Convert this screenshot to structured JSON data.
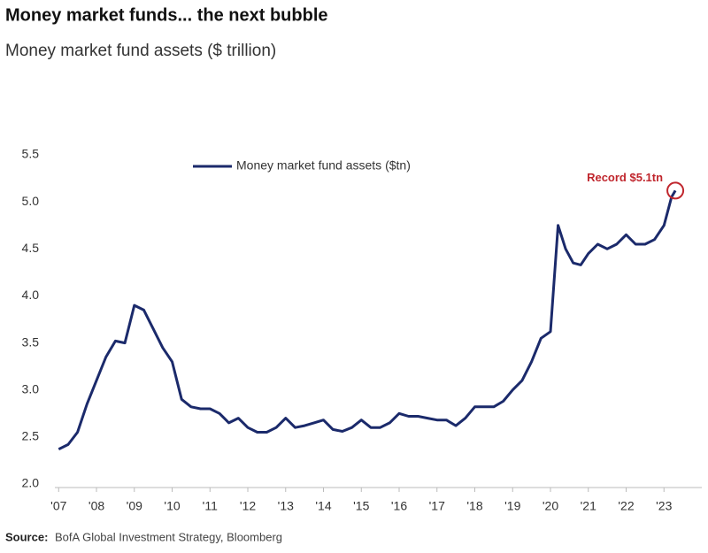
{
  "chart_data": {
    "type": "line",
    "title": "Money market funds... the next bubble",
    "subtitle": "Money market fund assets ($ trillion)",
    "source_label": "Source:",
    "source": "BofA Global Investment Strategy, Bloomberg",
    "annotation": "Record $5.1tn",
    "legend": "top-left",
    "grid": false,
    "xlim": [
      2006.9,
      2024
    ],
    "ylim": [
      2.0,
      5.5
    ],
    "yticks": [
      {
        "value": 2.0,
        "label": "2.0"
      },
      2.5,
      {
        "value": 3.0,
        "label": "3.0"
      },
      3.5,
      {
        "value": 4.0,
        "label": "4.0"
      },
      4.5,
      {
        "value": 5.0,
        "label": "5.0"
      },
      5.5
    ],
    "xticks": [
      {
        "value": 2007,
        "label": "'07"
      },
      {
        "value": 2008,
        "label": "'08"
      },
      {
        "value": 2009,
        "label": "'09"
      },
      {
        "value": 2010,
        "label": "'10"
      },
      {
        "value": 2011,
        "label": "'11"
      },
      {
        "value": 2012,
        "label": "'12"
      },
      {
        "value": 2013,
        "label": "'13"
      },
      {
        "value": 2014,
        "label": "'14"
      },
      {
        "value": 2015,
        "label": "'15"
      },
      {
        "value": 2016,
        "label": "'16"
      },
      {
        "value": 2017,
        "label": "'17"
      },
      {
        "value": 2018,
        "label": "'18"
      },
      {
        "value": 2019,
        "label": "'19"
      },
      {
        "value": 2020,
        "label": "'20"
      },
      {
        "value": 2021,
        "label": "'21"
      },
      {
        "value": 2022,
        "label": "'22"
      },
      {
        "value": 2023,
        "label": "'23"
      }
    ],
    "x": [
      2007.0,
      2007.25,
      2007.5,
      2007.75,
      2008.0,
      2008.25,
      2008.5,
      2008.75,
      2009.0,
      2009.25,
      2009.5,
      2009.75,
      2010.0,
      2010.25,
      2010.5,
      2010.75,
      2011.0,
      2011.25,
      2011.5,
      2011.75,
      2012.0,
      2012.25,
      2012.5,
      2012.75,
      2013.0,
      2013.25,
      2013.5,
      2013.75,
      2014.0,
      2014.25,
      2014.5,
      2014.75,
      2015.0,
      2015.25,
      2015.5,
      2015.75,
      2016.0,
      2016.25,
      2016.5,
      2016.75,
      2017.0,
      2017.25,
      2017.5,
      2017.75,
      2018.0,
      2018.25,
      2018.5,
      2018.75,
      2019.0,
      2019.25,
      2019.5,
      2019.75,
      2020.0,
      2020.2,
      2020.4,
      2020.6,
      2020.8,
      2021.0,
      2021.25,
      2021.5,
      2021.75,
      2022.0,
      2022.25,
      2022.5,
      2022.75,
      2023.0,
      2023.2,
      2023.3
    ],
    "series": [
      {
        "name": "Money market fund assets ($tn)",
        "color": "#1b2a6b",
        "values": [
          2.37,
          2.42,
          2.55,
          2.85,
          3.1,
          3.35,
          3.52,
          3.5,
          3.9,
          3.85,
          3.65,
          3.45,
          3.3,
          2.9,
          2.82,
          2.8,
          2.8,
          2.75,
          2.65,
          2.7,
          2.6,
          2.55,
          2.55,
          2.6,
          2.7,
          2.6,
          2.62,
          2.65,
          2.68,
          2.58,
          2.56,
          2.6,
          2.68,
          2.6,
          2.6,
          2.65,
          2.75,
          2.72,
          2.72,
          2.7,
          2.68,
          2.68,
          2.62,
          2.7,
          2.82,
          2.82,
          2.82,
          2.88,
          3.0,
          3.1,
          3.3,
          3.55,
          3.62,
          4.75,
          4.5,
          4.35,
          4.33,
          4.45,
          4.55,
          4.5,
          4.55,
          4.65,
          4.55,
          4.55,
          4.6,
          4.75,
          5.05,
          5.12
        ]
      }
    ]
  }
}
